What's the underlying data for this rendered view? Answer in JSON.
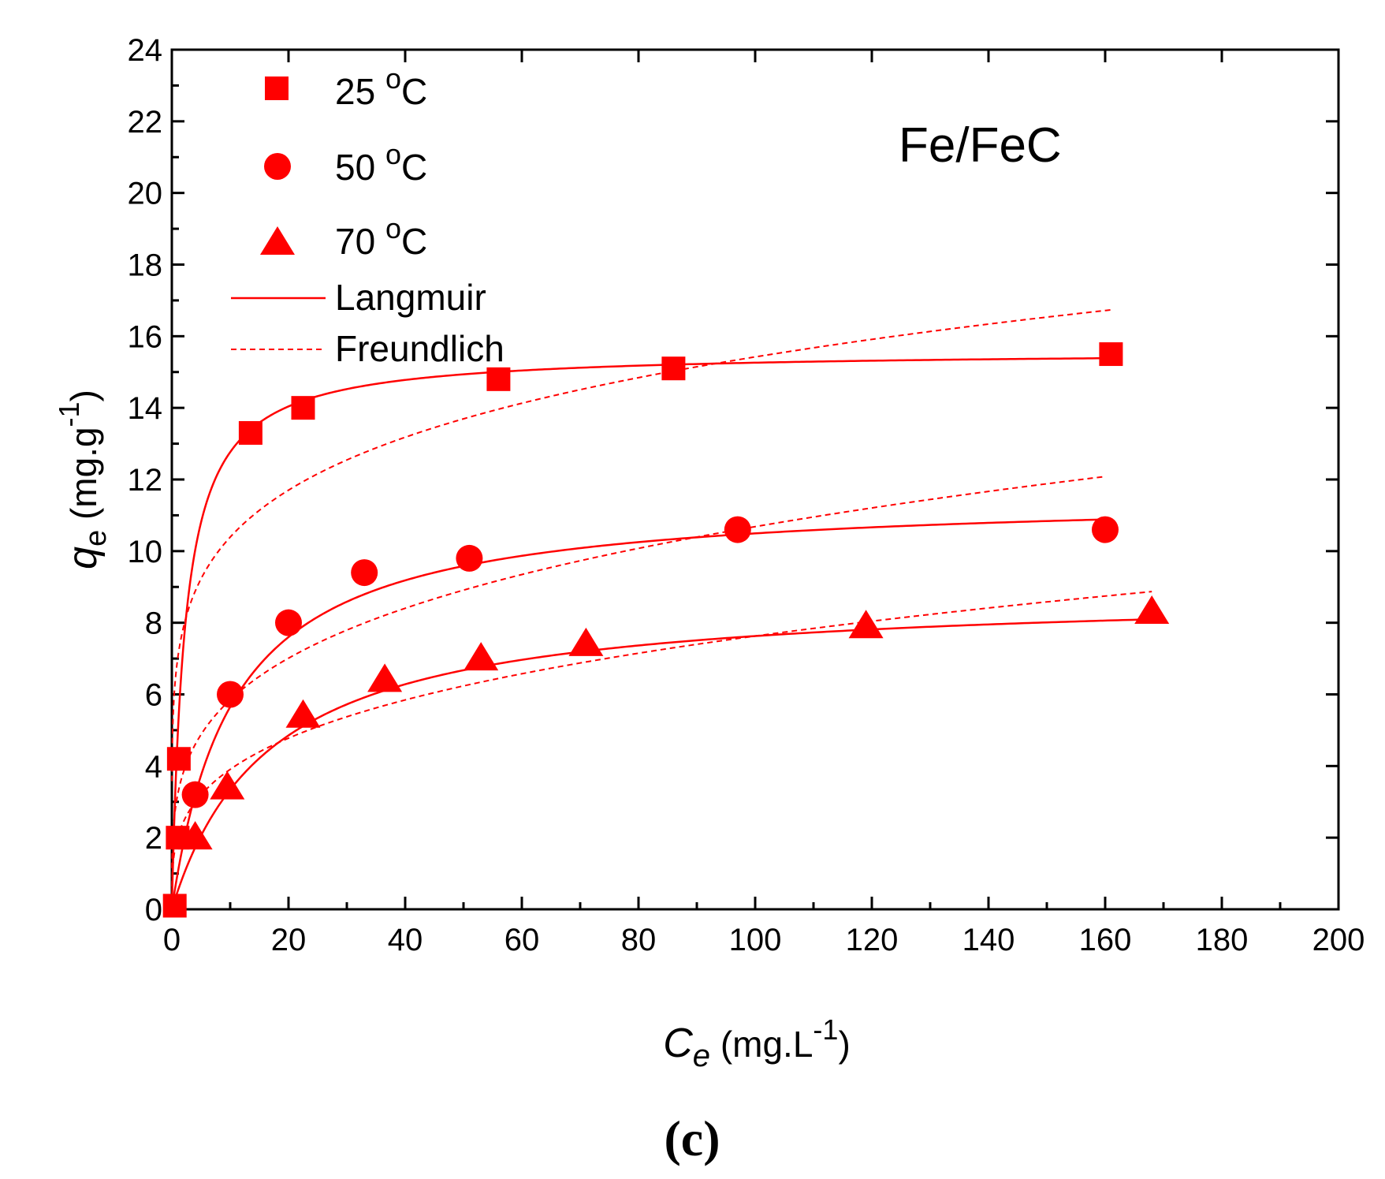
{
  "chart_data": {
    "type": "scatter",
    "annotation": "Fe/FeC",
    "panel_label": "(c)",
    "xlabel": {
      "main": "C",
      "sub": "e",
      "unit": "(mg.L",
      "sup": "-1",
      "close": ")"
    },
    "ylabel": {
      "main": "q",
      "sub": "e",
      "unit": "(mg.g",
      "sup": "-1",
      "close": ")"
    },
    "xlim": [
      0,
      200
    ],
    "ylim": [
      0,
      24
    ],
    "xticks": [
      0,
      20,
      40,
      60,
      80,
      100,
      120,
      140,
      160,
      180,
      200
    ],
    "yticks": [
      0,
      2,
      4,
      6,
      8,
      10,
      12,
      14,
      16,
      18,
      20,
      22,
      24
    ],
    "color": "#ff0000",
    "series": [
      {
        "name": "25 oC",
        "label_num": "25",
        "label_sup": "o",
        "label_unit": "C",
        "marker": "square",
        "x": [
          0.5,
          1.0,
          1.2,
          13.5,
          22.5,
          56,
          86,
          161
        ],
        "y": [
          0.1,
          2.0,
          4.2,
          13.3,
          14.0,
          14.8,
          15.1,
          15.5
        ],
        "langmuir": {
          "qm": 15.6,
          "KL": 0.45,
          "xmax": 161
        },
        "freundlich": {
          "KF": 7.0,
          "n": 5.83,
          "xmax": 161
        }
      },
      {
        "name": "50 oC",
        "label_num": "50",
        "label_sup": "o",
        "label_unit": "C",
        "marker": "circle",
        "x": [
          4,
          10,
          20,
          33,
          51,
          97,
          160
        ],
        "y": [
          3.2,
          6.0,
          8.0,
          9.4,
          9.8,
          10.6,
          10.6
        ],
        "langmuir": {
          "qm": 11.6,
          "KL": 0.095,
          "xmax": 160
        },
        "freundlich": {
          "KF": 3.2,
          "n": 3.82,
          "xmax": 160
        }
      },
      {
        "name": "70 oC",
        "label_num": "70",
        "label_sup": "o",
        "label_unit": "C",
        "marker": "triangle",
        "x": [
          4,
          9.5,
          22.5,
          36.5,
          53,
          71,
          119,
          168
        ],
        "y": [
          2.0,
          3.4,
          5.4,
          6.4,
          7.0,
          7.4,
          7.9,
          8.3
        ],
        "langmuir": {
          "qm": 8.9,
          "KL": 0.06,
          "xmax": 168
        },
        "freundlich": {
          "KF": 2.0,
          "n": 3.44,
          "xmax": 168
        }
      }
    ],
    "legend": {
      "langmuir_label": "Langmuir",
      "freundlich_label": "Freundlich"
    }
  }
}
